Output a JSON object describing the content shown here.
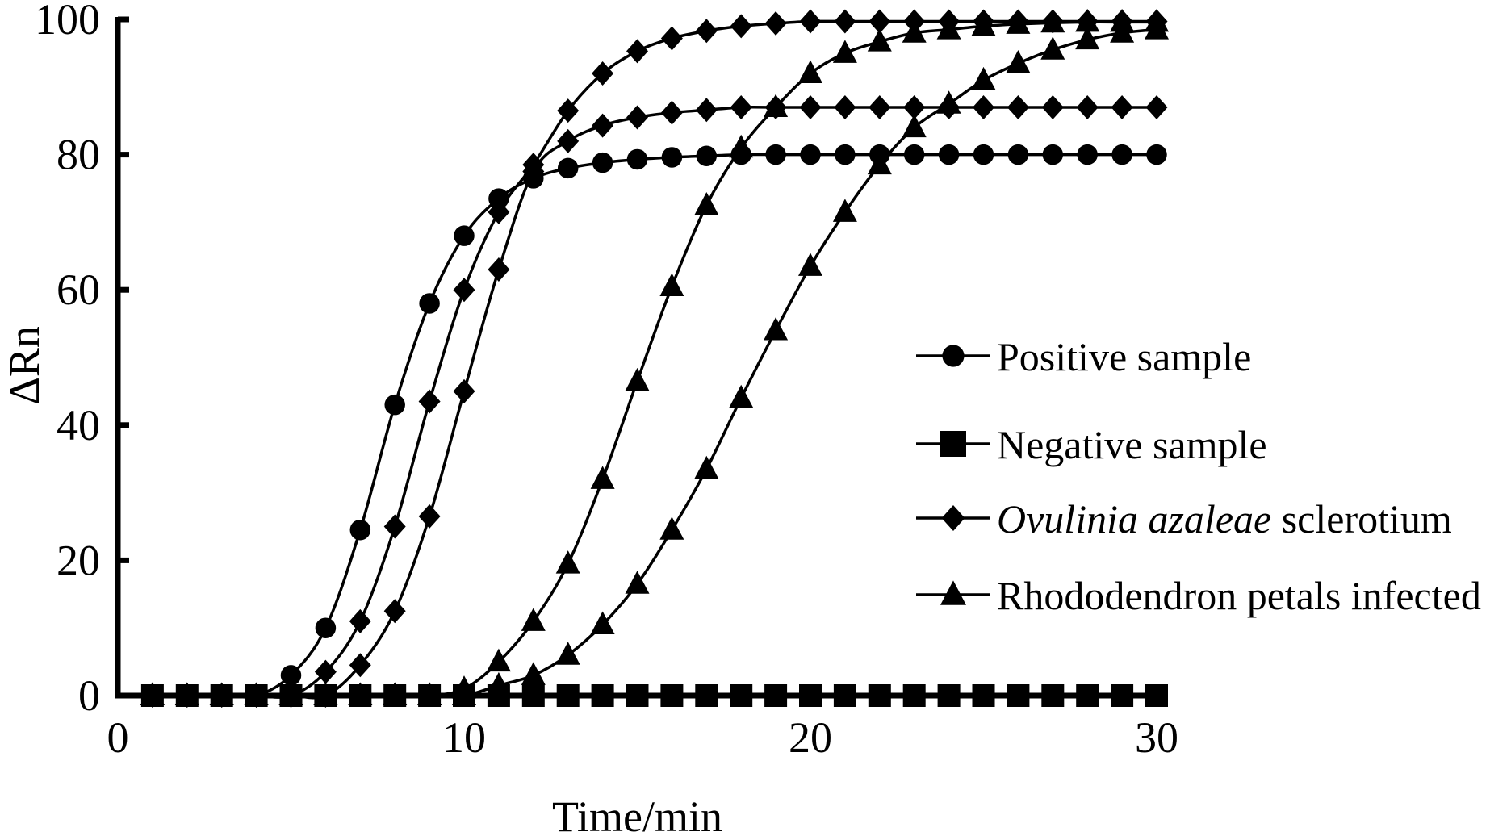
{
  "chart_data": {
    "type": "line",
    "title": "",
    "xlabel": "Time/min",
    "ylabel": "ΔRn",
    "xlim": [
      0,
      30
    ],
    "ylim": [
      0,
      100
    ],
    "xticks": [
      0,
      10,
      20,
      30
    ],
    "yticks": [
      0,
      20,
      40,
      60,
      80,
      100
    ],
    "xtick_labels": [
      "0",
      "10",
      "20",
      "30"
    ],
    "ytick_labels": [
      "0",
      "20",
      "40",
      "60",
      "80",
      "100"
    ],
    "grid": false,
    "legend_position": "center-right",
    "x": [
      1,
      2,
      3,
      4,
      5,
      6,
      7,
      8,
      9,
      10,
      11,
      12,
      13,
      14,
      15,
      16,
      17,
      18,
      19,
      20,
      21,
      22,
      23,
      24,
      25,
      26,
      27,
      28,
      29,
      30
    ],
    "legend": [
      {
        "label_parts": [
          {
            "text": "Positive sample",
            "italic": false
          }
        ],
        "marker": "circle"
      },
      {
        "label_parts": [
          {
            "text": "Negative sample",
            "italic": false
          }
        ],
        "marker": "square"
      },
      {
        "label_parts": [
          {
            "text": "Ovulinia azaleae",
            "italic": true
          },
          {
            "text": " sclerotium",
            "italic": false
          }
        ],
        "marker": "diamond"
      },
      {
        "label_parts": [
          {
            "text": "Rhododendron petals infected",
            "italic": false
          }
        ],
        "marker": "triangle"
      }
    ],
    "series": [
      {
        "name": "Positive sample",
        "marker": "circle",
        "values": [
          0,
          0,
          0,
          0,
          3,
          10,
          24.5,
          43,
          58,
          68,
          73.5,
          76.5,
          78,
          78.8,
          79.3,
          79.6,
          79.8,
          80,
          80,
          80,
          80,
          80,
          80,
          80,
          80,
          80,
          80,
          80,
          80,
          80
        ]
      },
      {
        "name": "Ovulinia azaleae sclerotium",
        "marker": "diamond",
        "values": [
          0,
          0,
          0,
          0,
          0,
          3.5,
          11,
          25,
          43.5,
          60,
          71.5,
          78.5,
          86.5,
          92,
          95.3,
          97.2,
          98.3,
          99,
          99.4,
          99.7,
          99.7,
          99.7,
          99.7,
          99.7,
          99.7,
          99.7,
          99.7,
          99.7,
          99.7,
          99.7
        ]
      },
      {
        "name": "Ovulinia azaleae sclerotium",
        "marker": "diamond",
        "values": [
          0,
          0,
          0,
          0,
          0,
          0,
          4.5,
          12.5,
          26.5,
          45,
          63,
          77.5,
          82,
          84.3,
          85.5,
          86.2,
          86.6,
          87,
          87,
          87,
          87,
          87,
          87,
          87,
          87,
          87,
          87,
          87,
          87,
          87
        ]
      },
      {
        "name": "Rhododendron petals infected",
        "marker": "triangle",
        "values": [
          0,
          0,
          0,
          0,
          0,
          0,
          0,
          0,
          0,
          1,
          5,
          11,
          19.5,
          32,
          46.5,
          60.5,
          72.5,
          81,
          87,
          92,
          95,
          96.7,
          98,
          98.5,
          99,
          99.3,
          99.5,
          99.6,
          99.6,
          99.6
        ]
      },
      {
        "name": "Rhododendron petals infected",
        "marker": "triangle",
        "values": [
          0,
          0,
          0,
          0,
          0,
          0,
          0,
          0,
          0,
          0,
          1.5,
          3,
          6,
          10.5,
          16.5,
          24.5,
          33.5,
          44,
          54,
          63.5,
          71.5,
          78.5,
          84,
          87.5,
          91,
          93.5,
          95.5,
          97,
          98,
          98.5
        ]
      },
      {
        "name": "Negative sample",
        "marker": "square",
        "values": [
          0,
          0,
          0,
          0,
          0,
          0,
          0,
          0,
          0,
          0,
          0,
          0,
          0,
          0,
          0,
          0,
          0,
          0,
          0,
          0,
          0,
          0,
          0,
          0,
          0,
          0,
          0,
          0,
          0,
          0
        ]
      }
    ]
  }
}
